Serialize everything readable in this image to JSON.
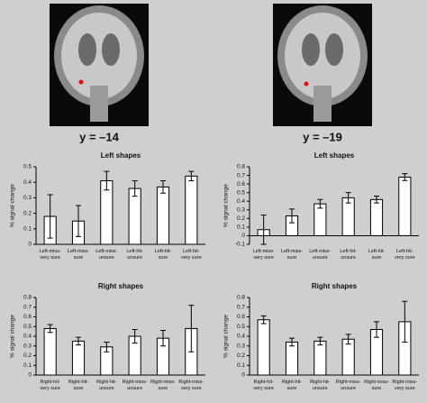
{
  "images": [
    {
      "label": "y = –14"
    },
    {
      "label": "y = –19"
    }
  ],
  "chart_data": [
    {
      "type": "bar",
      "title": "Left shapes",
      "y_label": "% signal change",
      "categories": [
        "Left-miss-very sure",
        "Left-miss-sure",
        "Left-miss-unsure",
        "Left-hit-unsure",
        "Left-hit-sure",
        "Left-hit-very sure"
      ],
      "values": [
        0.18,
        0.15,
        0.41,
        0.36,
        0.37,
        0.44
      ],
      "errors": [
        0.14,
        0.1,
        0.06,
        0.05,
        0.04,
        0.03
      ],
      "ylim": [
        0,
        0.5
      ],
      "yticks": [
        0,
        0.1,
        0.2,
        0.3,
        0.4,
        0.5
      ],
      "color": "#ffffff"
    },
    {
      "type": "bar",
      "title": "Left shapes",
      "y_label": "% signal change",
      "categories": [
        "Left-miss-very sure",
        "Left-miss-sure",
        "Left-miss-unsure",
        "Left-hit-unsure",
        "Left-hit-sure",
        "Left-hit-very sure"
      ],
      "values": [
        0.07,
        0.23,
        0.37,
        0.44,
        0.42,
        0.68
      ],
      "errors": [
        0.17,
        0.08,
        0.05,
        0.06,
        0.04,
        0.04
      ],
      "ylim": [
        -0.1,
        0.8
      ],
      "yticks": [
        -0.1,
        0,
        0.1,
        0.2,
        0.3,
        0.4,
        0.5,
        0.6,
        0.7,
        0.8
      ],
      "color": "#ffffff"
    },
    {
      "type": "bar",
      "title": "Right shapes",
      "y_label": "% signal change",
      "categories": [
        "Right-hit-very sure",
        "Right-hit-sure",
        "Right-hit-unsure",
        "Right-miss-unsure",
        "Right-miss-sure",
        "Right-miss-very sure"
      ],
      "values": [
        0.48,
        0.35,
        0.29,
        0.4,
        0.38,
        0.48
      ],
      "errors": [
        0.04,
        0.04,
        0.05,
        0.07,
        0.08,
        0.24
      ],
      "ylim": [
        0,
        0.8
      ],
      "yticks": [
        0,
        0.1,
        0.2,
        0.3,
        0.4,
        0.5,
        0.6,
        0.7,
        0.8
      ],
      "color": "#ffffff"
    },
    {
      "type": "bar",
      "title": "Right shapes",
      "y_label": "% signal change",
      "categories": [
        "Right-hit-very sure",
        "Right-hit-sure",
        "Right-hit-unsure",
        "Right-miss-unsure",
        "Right-miss-sure",
        "Right-miss-very sure"
      ],
      "values": [
        0.57,
        0.34,
        0.35,
        0.37,
        0.47,
        0.55
      ],
      "errors": [
        0.04,
        0.04,
        0.04,
        0.05,
        0.08,
        0.21
      ],
      "ylim": [
        0,
        0.8
      ],
      "yticks": [
        0,
        0.1,
        0.2,
        0.3,
        0.4,
        0.5,
        0.6,
        0.7,
        0.8
      ],
      "color": "#ffffff"
    }
  ]
}
